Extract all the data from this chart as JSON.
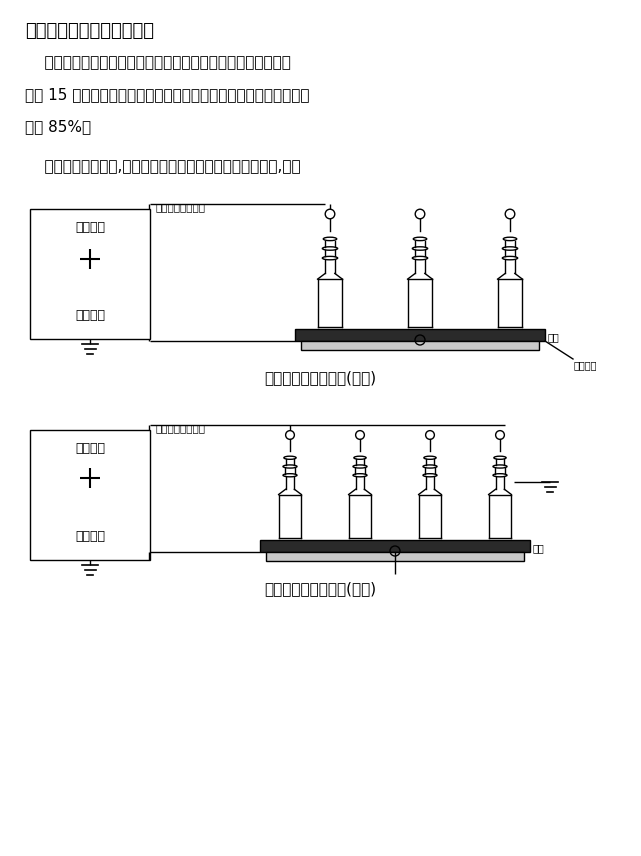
{
  "title": "三、工频放电试验接线方法",
  "line1": "    在过电压保护器的相地之间的放电。测试时，每次测量间隔不",
  "line2": "小于 15 秒，测量三次，求平均值，该值不应小于说明书中规定参数",
  "line3": "值的 85%。",
  "para2": "    两种过电压保护器,测试相地之间放电的接线图分别为图一,图二",
  "cap1": "相地之间放电接线图(图一)",
  "cap2": "相地之间放电接线图(图二)",
  "label_hvline": "高压线，注意安全",
  "label_hvout": "高压输出",
  "label_gnd": "测量接地",
  "label_plate": "铁板",
  "label_gndscrew": "接地螺钉",
  "label_plate2": "铁板",
  "bg_color": "#ffffff",
  "text_color": "#000000",
  "line_color": "#000000"
}
